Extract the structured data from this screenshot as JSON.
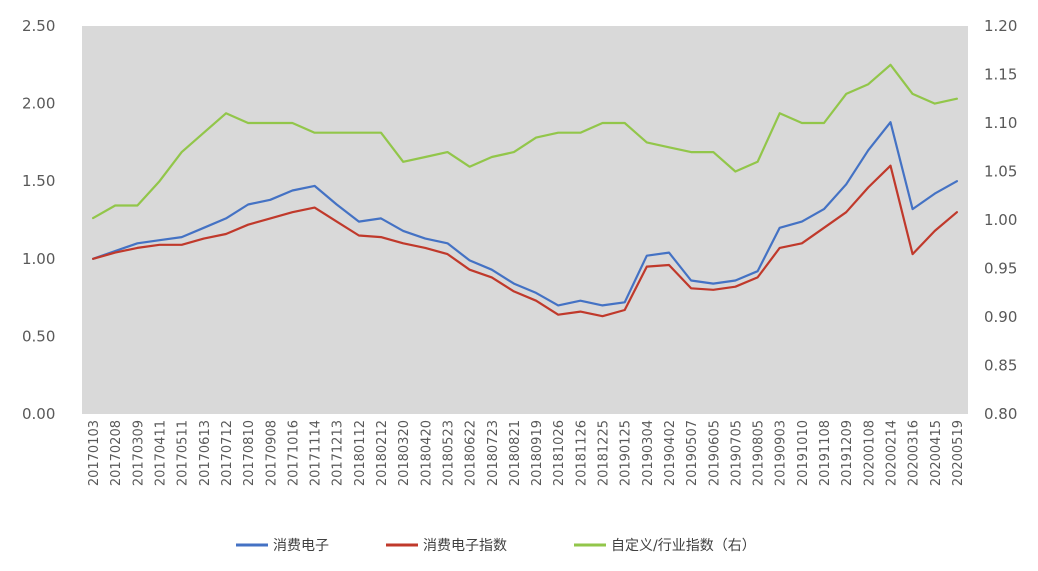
{
  "chart_data": {
    "type": "line",
    "title": "",
    "xlabel": "",
    "ylabel": "",
    "y_left": {
      "ticks": [
        "0.00",
        "0.50",
        "1.00",
        "1.50",
        "2.00",
        "2.50"
      ],
      "range": [
        0,
        2.5
      ]
    },
    "y_right": {
      "ticks": [
        "0.80",
        "0.85",
        "0.90",
        "0.95",
        "1.00",
        "1.05",
        "1.10",
        "1.15",
        "1.20"
      ],
      "range": [
        0.8,
        1.2
      ]
    },
    "x_tick_labels": [
      "20170103",
      "20170208",
      "20170309",
      "20170411",
      "20170511",
      "20170613",
      "20170712",
      "20170810",
      "20170908",
      "20171016",
      "20171114",
      "20171213",
      "20180112",
      "20180212",
      "20180320",
      "20180420",
      "20180523",
      "20180622",
      "20180723",
      "20180821",
      "20180919",
      "20181026",
      "20181126",
      "20181225",
      "20190125",
      "20190304",
      "20190402",
      "20190507",
      "20190605",
      "20190705",
      "20190805",
      "20190903",
      "20191010",
      "20191108",
      "20191209",
      "20200108",
      "20200214",
      "20200316",
      "20200415",
      "20200519"
    ],
    "grid": false,
    "plot_background": "#d9d9d9",
    "legend_position": "bottom",
    "series": [
      {
        "name": "消费电子",
        "axis": "left",
        "color": "#4472c4",
        "values": [
          1.0,
          1.05,
          1.1,
          1.12,
          1.14,
          1.2,
          1.26,
          1.35,
          1.38,
          1.44,
          1.47,
          1.35,
          1.24,
          1.26,
          1.18,
          1.13,
          1.1,
          0.99,
          0.93,
          0.84,
          0.78,
          0.7,
          0.73,
          0.7,
          0.72,
          1.02,
          1.04,
          0.86,
          0.84,
          0.86,
          0.92,
          1.2,
          1.24,
          1.32,
          1.48,
          1.7,
          1.88,
          1.32,
          1.42,
          1.5
        ]
      },
      {
        "name": "消费电子指数",
        "axis": "left",
        "color": "#c0392b",
        "values": [
          1.0,
          1.04,
          1.07,
          1.09,
          1.09,
          1.13,
          1.16,
          1.22,
          1.26,
          1.3,
          1.33,
          1.24,
          1.15,
          1.14,
          1.1,
          1.07,
          1.03,
          0.93,
          0.88,
          0.79,
          0.73,
          0.64,
          0.66,
          0.63,
          0.67,
          0.95,
          0.96,
          0.81,
          0.8,
          0.82,
          0.88,
          1.07,
          1.1,
          1.2,
          1.3,
          1.46,
          1.6,
          1.03,
          1.18,
          1.3
        ]
      },
      {
        "name": "自定义/行业指数（右）",
        "axis": "right",
        "color": "#92c64a",
        "values": [
          1.002,
          1.015,
          1.015,
          1.04,
          1.07,
          1.09,
          1.11,
          1.1,
          1.1,
          1.1,
          1.09,
          1.09,
          1.09,
          1.09,
          1.06,
          1.065,
          1.07,
          1.055,
          1.065,
          1.07,
          1.085,
          1.09,
          1.09,
          1.1,
          1.1,
          1.08,
          1.075,
          1.07,
          1.07,
          1.05,
          1.06,
          1.11,
          1.1,
          1.1,
          1.13,
          1.14,
          1.16,
          1.13,
          1.12,
          1.125
        ]
      }
    ]
  }
}
